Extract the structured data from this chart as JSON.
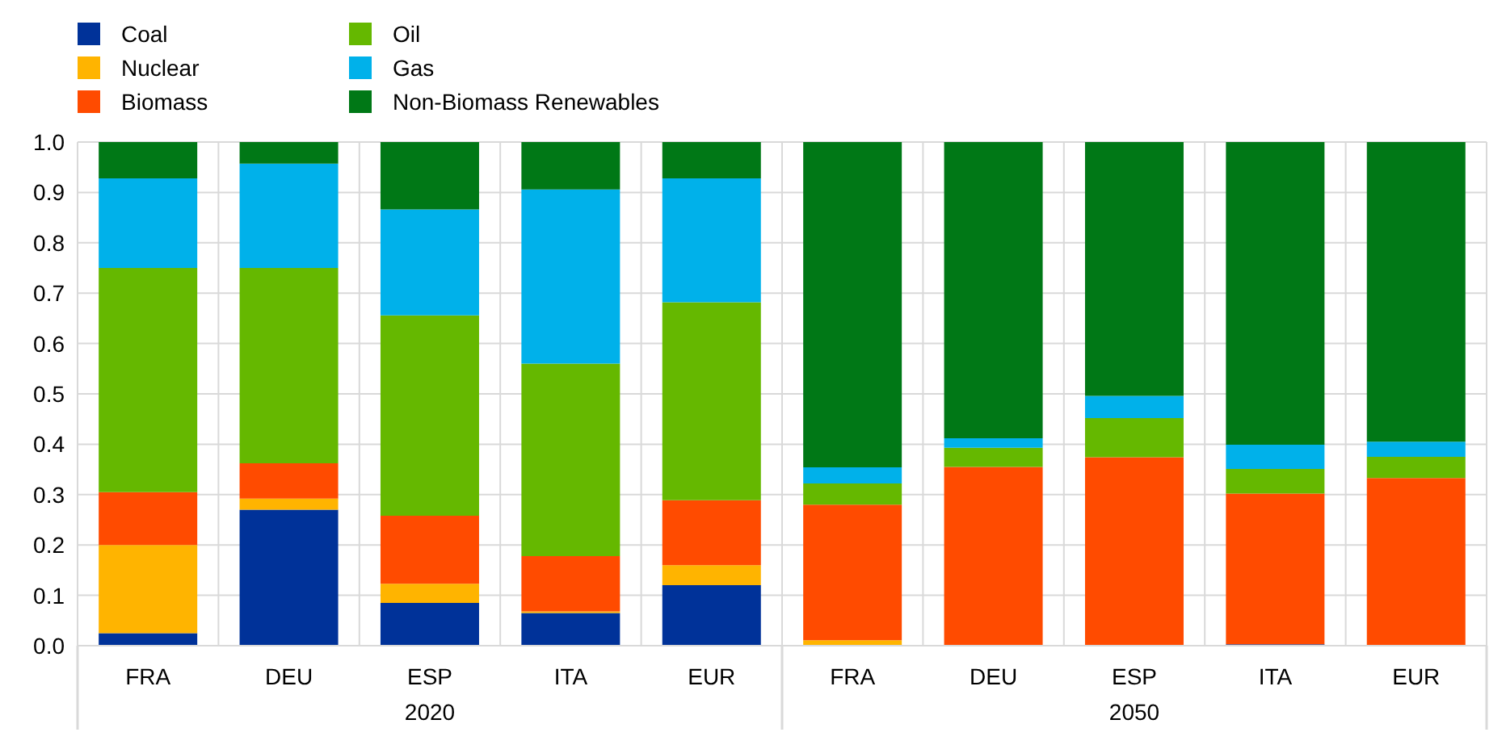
{
  "chart_data": {
    "type": "bar",
    "stacked": true,
    "categories": [
      "FRA",
      "DEU",
      "ESP",
      "ITA",
      "EUR",
      "FRA",
      "DEU",
      "ESP",
      "ITA",
      "EUR"
    ],
    "series": [
      {
        "name": "Coal",
        "color": "#003299",
        "values": [
          0.025,
          0.27,
          0.085,
          0.065,
          0.12,
          0,
          0,
          0,
          0.003,
          0
        ]
      },
      {
        "name": "Nuclear",
        "color": "#ffb400",
        "values": [
          0.175,
          0.022,
          0.038,
          0.003,
          0.04,
          0.011,
          0,
          0,
          0,
          0
        ]
      },
      {
        "name": "Biomass",
        "color": "#ff4b00",
        "values": [
          0.105,
          0.07,
          0.135,
          0.11,
          0.129,
          0.269,
          0.355,
          0.374,
          0.299,
          0.333
        ]
      },
      {
        "name": "Oil",
        "color": "#65b800",
        "values": [
          0.445,
          0.388,
          0.398,
          0.382,
          0.393,
          0.042,
          0.038,
          0.078,
          0.049,
          0.042
        ]
      },
      {
        "name": "Gas",
        "color": "#00b1ea",
        "values": [
          0.178,
          0.207,
          0.21,
          0.346,
          0.246,
          0.032,
          0.019,
          0.044,
          0.048,
          0.03
        ]
      },
      {
        "name": "Non-Biomass Renewables",
        "color": "#007816",
        "values": [
          0.072,
          0.043,
          0.134,
          0.094,
          0.072,
          0.646,
          0.588,
          0.504,
          0.601,
          0.595
        ]
      }
    ],
    "ylim": [
      0,
      1
    ],
    "yticks": [
      {
        "value": 0,
        "label": "0.0"
      },
      {
        "value": 0.1,
        "label": "0.1"
      },
      {
        "value": 0.2,
        "label": "0.2"
      },
      {
        "value": 0.3,
        "label": "0.3"
      },
      {
        "value": 0.4,
        "label": "0.4"
      },
      {
        "value": 0.5,
        "label": "0.5"
      },
      {
        "value": 0.6,
        "label": "0.6"
      },
      {
        "value": 0.7,
        "label": "0.7"
      },
      {
        "value": 0.8,
        "label": "0.8"
      },
      {
        "value": 0.9,
        "label": "0.9"
      },
      {
        "value": 1,
        "label": "1.0"
      }
    ],
    "grid": true,
    "legend": "top left",
    "annotations": [
      "2020",
      "2050"
    ]
  }
}
